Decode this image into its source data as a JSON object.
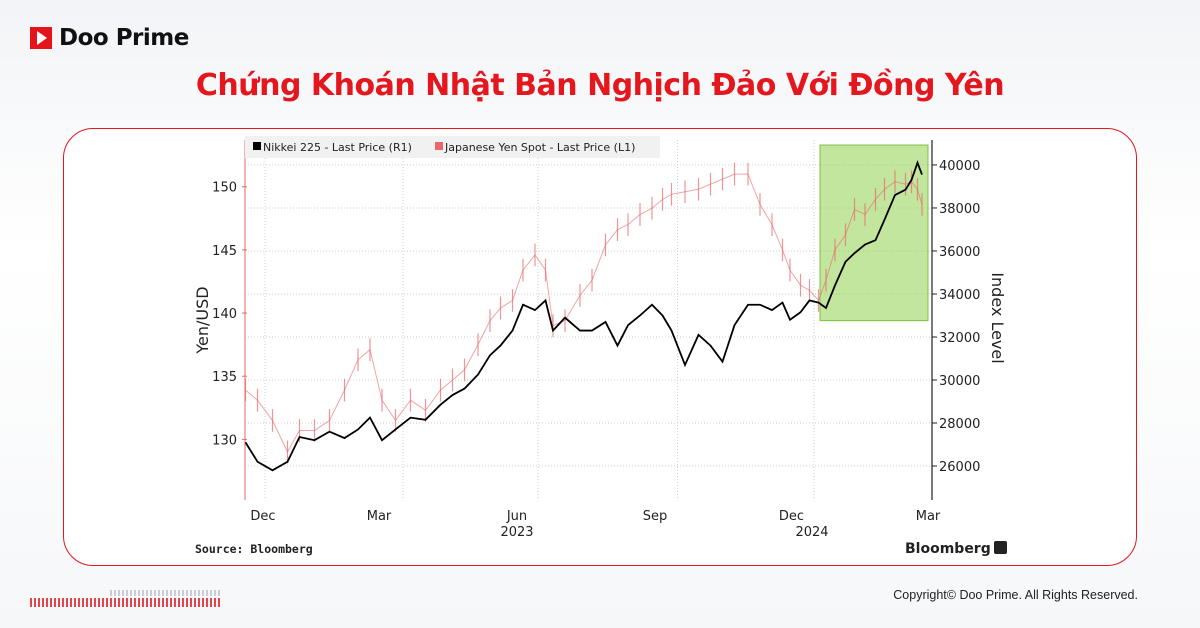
{
  "brand": {
    "name": "Doo Prime",
    "accent": "#e3171d"
  },
  "title": "Chứng Khoán Nhật Bản Nghịch Đảo Với Đồng Yên",
  "copyright": "Copyright© Doo Prime. All Rights Reserved.",
  "chart_data": {
    "type": "line",
    "title": "",
    "legend": {
      "placement": "top-left",
      "entries": [
        "Nikkei 225 - Last Price (R1)",
        "Japanese Yen Spot - Last Price (L1)"
      ]
    },
    "x_ticks": [
      {
        "date": "2022-12-01",
        "label": "Dec"
      },
      {
        "date": "2023-03-01",
        "label": "Mar"
      },
      {
        "date": "2023-06-01",
        "label": "Jun"
      },
      {
        "date": "2023-09-01",
        "label": "Sep"
      },
      {
        "date": "2023-12-01",
        "label": "Dec"
      },
      {
        "date": "2024-03-01",
        "label": "Mar"
      }
    ],
    "year_labels": [
      {
        "date": "2023-06-01",
        "label": "2023"
      },
      {
        "date": "2024-01-15",
        "label": "2024"
      }
    ],
    "left_axis": {
      "label": "Yen/USD",
      "ticks": [
        130,
        135,
        140,
        145,
        150
      ],
      "ylim": [
        125.2,
        153.7
      ]
    },
    "right_axis": {
      "label": "Index Level",
      "ticks": [
        26000,
        28000,
        30000,
        32000,
        34000,
        36000,
        38000,
        40000
      ],
      "ylim": [
        24420,
        41160
      ]
    },
    "grid": true,
    "x": [
      "2022-12-02",
      "2022-12-10",
      "2022-12-20",
      "2022-12-30",
      "2023-01-07",
      "2023-01-17",
      "2023-01-27",
      "2023-02-06",
      "2023-02-15",
      "2023-02-23",
      "2023-03-03",
      "2023-03-12",
      "2023-03-22",
      "2023-04-01",
      "2023-04-11",
      "2023-04-19",
      "2023-04-27",
      "2023-05-06",
      "2023-05-14",
      "2023-05-21",
      "2023-05-29",
      "2023-06-05",
      "2023-06-13",
      "2023-06-20",
      "2023-06-25",
      "2023-07-03",
      "2023-07-13",
      "2023-07-21",
      "2023-07-30",
      "2023-08-07",
      "2023-08-14",
      "2023-08-22",
      "2023-08-30",
      "2023-09-06",
      "2023-09-12",
      "2023-09-21",
      "2023-09-30",
      "2023-10-08",
      "2023-10-16",
      "2023-10-24",
      "2023-11-02",
      "2023-11-10",
      "2023-11-18",
      "2023-11-25",
      "2023-11-30",
      "2023-12-07",
      "2023-12-13",
      "2023-12-19",
      "2023-12-24",
      "2023-12-30",
      "2024-01-06",
      "2024-01-12",
      "2024-01-19",
      "2024-01-26",
      "2024-02-01",
      "2024-02-08",
      "2024-02-15",
      "2024-02-19",
      "2024-02-23",
      "2024-02-26"
    ],
    "series": [
      {
        "name": "Nikkei 225 - Last Price (R1)",
        "axis": "right",
        "color": "#000000",
        "values": [
          27100,
          26200,
          25800,
          26200,
          27350,
          27200,
          27600,
          27300,
          27700,
          28250,
          27200,
          27700,
          28250,
          28150,
          28850,
          29300,
          29600,
          30250,
          31150,
          31600,
          32300,
          33500,
          33250,
          33700,
          32300,
          32900,
          32300,
          32300,
          32700,
          31600,
          32550,
          33000,
          33500,
          33000,
          32300,
          30700,
          32100,
          31600,
          30850,
          32550,
          33500,
          33500,
          33250,
          33600,
          32800,
          33150,
          33700,
          33600,
          33350,
          34400,
          35500,
          35900,
          36300,
          36500,
          37450,
          38600,
          38850,
          39300,
          40100,
          39550
        ]
      },
      {
        "name": "Japanese Yen Spot - Last Price (L1)",
        "axis": "left",
        "color": "#e8676b",
        "values": [
          133.9,
          133.1,
          131.5,
          129.0,
          130.7,
          130.7,
          131.5,
          133.9,
          136.3,
          137.1,
          133.1,
          131.5,
          133.1,
          132.3,
          133.9,
          134.7,
          135.5,
          137.5,
          139.4,
          140.4,
          141.0,
          143.4,
          144.6,
          143.4,
          139.0,
          139.4,
          141.4,
          142.6,
          145.4,
          146.6,
          147.0,
          147.8,
          148.3,
          149.0,
          149.4,
          149.6,
          149.8,
          150.2,
          150.6,
          151.0,
          151.0,
          148.6,
          147.0,
          145.0,
          143.4,
          142.2,
          141.8,
          141.0,
          142.6,
          145.0,
          146.2,
          148.2,
          147.8,
          149.0,
          149.8,
          150.4,
          150.2,
          150.4,
          149.8,
          148.6
        ]
      }
    ],
    "highlight": {
      "from": "2023-12-20",
      "to": "2024-03-01",
      "yen_range": [
        139.4,
        153.3
      ],
      "color": "#8fd14f"
    },
    "source": "Source: Bloomberg",
    "watermark": "Bloomberg"
  }
}
